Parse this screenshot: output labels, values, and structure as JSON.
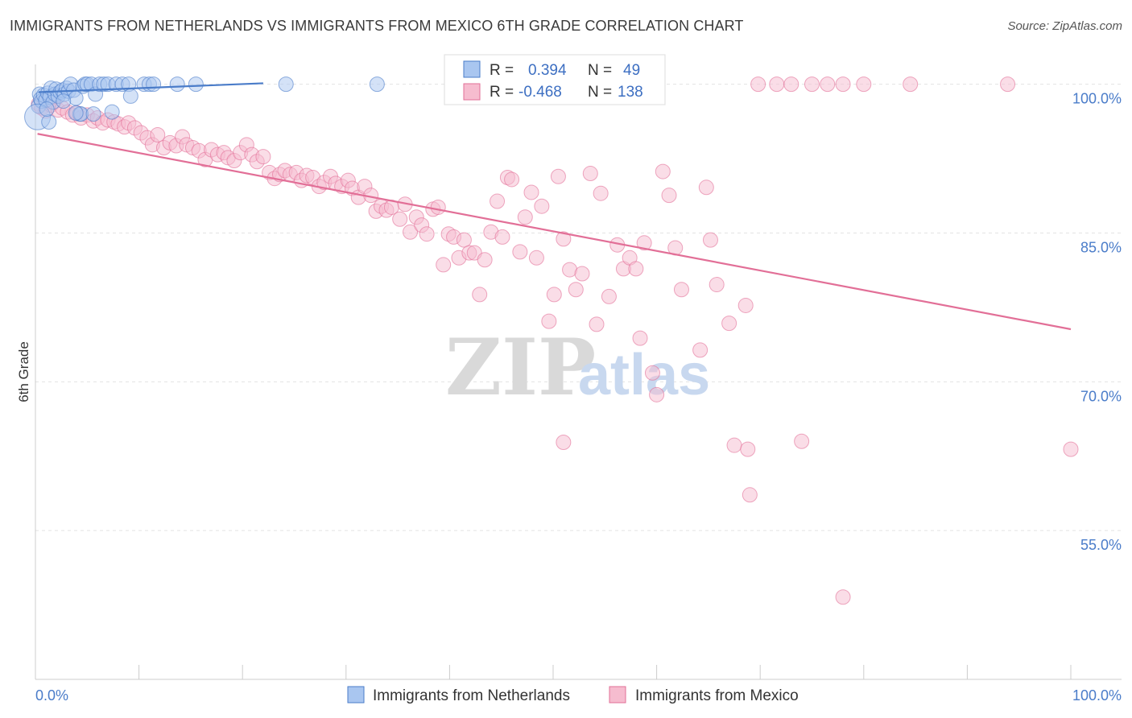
{
  "title": "IMMIGRANTS FROM NETHERLANDS VS IMMIGRANTS FROM MEXICO 6TH GRADE CORRELATION CHART",
  "source": "Source: ZipAtlas.com",
  "watermark": {
    "zip": "ZIP",
    "atlas": "atlas"
  },
  "colors": {
    "blue": "#4a7cc9",
    "blue_fill": "#a9c6f0",
    "pink": "#e26f97",
    "pink_fill": "#f6bccf"
  },
  "legend": {
    "rows": [
      {
        "r_label": "R =",
        "r_value": "0.394",
        "n_label": "N =",
        "n_value": "49"
      },
      {
        "r_label": "R =",
        "r_value": "-0.468",
        "n_label": "N =",
        "n_value": "138"
      }
    ]
  },
  "chart_data": {
    "type": "scatter",
    "xlabel": "",
    "ylabel": "6th Grade",
    "xlim": [
      0,
      100
    ],
    "ylim": [
      40,
      102
    ],
    "x_tick_labels": [
      "0.0%",
      "100.0%"
    ],
    "y_ticks": [
      {
        "value": 100,
        "label": "100.0%"
      },
      {
        "value": 85,
        "label": "85.0%"
      },
      {
        "value": 70,
        "label": "70.0%"
      },
      {
        "value": 55,
        "label": "55.0%"
      }
    ],
    "series": [
      {
        "name": "Immigrants from Netherlands",
        "color": "#4a7cc9",
        "trend": [
          [
            0.3,
            99.2
          ],
          [
            22,
            100.1
          ]
        ],
        "points": [
          [
            0.3,
            97.8
          ],
          [
            0.4,
            99.0
          ],
          [
            0.5,
            98.5
          ],
          [
            0.6,
            98.3
          ],
          [
            0.8,
            98.9
          ],
          [
            1.0,
            98.4
          ],
          [
            1.2,
            99.1
          ],
          [
            1.4,
            98.7
          ],
          [
            1.5,
            99.6
          ],
          [
            1.7,
            98.2
          ],
          [
            1.9,
            99.0
          ],
          [
            2.0,
            99.5
          ],
          [
            2.2,
            98.8
          ],
          [
            2.4,
            99.2
          ],
          [
            2.6,
            99.4
          ],
          [
            2.8,
            99.0
          ],
          [
            3.0,
            99.6
          ],
          [
            3.2,
            99.3
          ],
          [
            3.4,
            100.0
          ],
          [
            3.7,
            99.4
          ],
          [
            3.9,
            98.6
          ],
          [
            4.3,
            97.0
          ],
          [
            4.6,
            99.8
          ],
          [
            4.8,
            100.0
          ],
          [
            5.0,
            100.0
          ],
          [
            5.4,
            100.0
          ],
          [
            5.8,
            99.0
          ],
          [
            6.2,
            100.0
          ],
          [
            6.6,
            100.0
          ],
          [
            7.0,
            100.0
          ],
          [
            7.4,
            97.2
          ],
          [
            7.8,
            100.0
          ],
          [
            8.4,
            100.0
          ],
          [
            9.0,
            100.0
          ],
          [
            9.2,
            98.8
          ],
          [
            10.5,
            100.0
          ],
          [
            11.0,
            100.0
          ],
          [
            11.4,
            100.0
          ],
          [
            13.7,
            100.0
          ],
          [
            15.5,
            100.0
          ],
          [
            24.2,
            100.0
          ],
          [
            33.0,
            100.0
          ],
          [
            0.2,
            96.7
          ],
          [
            1.3,
            96.2
          ],
          [
            2.7,
            98.3
          ],
          [
            4.4,
            97.0
          ],
          [
            5.6,
            97.0
          ],
          [
            3.9,
            97.1
          ],
          [
            1.1,
            97.5
          ]
        ]
      },
      {
        "name": "Immigrants from Mexico",
        "color": "#e26f97",
        "trend": [
          [
            0.2,
            95.0
          ],
          [
            100,
            75.3
          ]
        ],
        "points": [
          [
            0.3,
            98.0
          ],
          [
            0.6,
            97.6
          ],
          [
            1.0,
            97.3
          ],
          [
            1.5,
            97.9
          ],
          [
            1.8,
            98.2
          ],
          [
            2.2,
            97.4
          ],
          [
            2.6,
            97.6
          ],
          [
            3.1,
            97.2
          ],
          [
            3.6,
            96.9
          ],
          [
            4.0,
            97.1
          ],
          [
            4.4,
            96.6
          ],
          [
            5.0,
            96.9
          ],
          [
            5.6,
            96.3
          ],
          [
            6.0,
            96.6
          ],
          [
            6.5,
            96.1
          ],
          [
            7.0,
            96.4
          ],
          [
            7.6,
            96.2
          ],
          [
            8.0,
            96.0
          ],
          [
            8.6,
            95.7
          ],
          [
            9.0,
            96.1
          ],
          [
            9.6,
            95.6
          ],
          [
            10.2,
            95.1
          ],
          [
            10.8,
            94.6
          ],
          [
            11.3,
            93.9
          ],
          [
            11.8,
            94.9
          ],
          [
            12.4,
            93.6
          ],
          [
            13.0,
            94.1
          ],
          [
            13.6,
            93.8
          ],
          [
            14.2,
            94.7
          ],
          [
            14.6,
            93.9
          ],
          [
            15.2,
            93.6
          ],
          [
            15.8,
            93.3
          ],
          [
            16.4,
            92.4
          ],
          [
            17.0,
            93.4
          ],
          [
            17.6,
            92.9
          ],
          [
            18.2,
            93.1
          ],
          [
            18.6,
            92.6
          ],
          [
            19.2,
            92.3
          ],
          [
            19.8,
            93.1
          ],
          [
            20.4,
            93.9
          ],
          [
            20.9,
            92.9
          ],
          [
            21.4,
            92.2
          ],
          [
            22.0,
            92.7
          ],
          [
            22.6,
            91.1
          ],
          [
            23.1,
            90.5
          ],
          [
            23.6,
            90.9
          ],
          [
            24.1,
            91.3
          ],
          [
            24.6,
            90.9
          ],
          [
            25.2,
            91.1
          ],
          [
            25.7,
            90.3
          ],
          [
            26.2,
            90.8
          ],
          [
            26.8,
            90.6
          ],
          [
            27.4,
            89.7
          ],
          [
            27.9,
            90.1
          ],
          [
            28.5,
            90.7
          ],
          [
            29.0,
            90.0
          ],
          [
            29.6,
            89.7
          ],
          [
            30.2,
            90.3
          ],
          [
            30.6,
            89.5
          ],
          [
            31.2,
            88.6
          ],
          [
            31.8,
            89.7
          ],
          [
            32.4,
            88.8
          ],
          [
            32.9,
            87.2
          ],
          [
            33.4,
            87.7
          ],
          [
            33.9,
            87.3
          ],
          [
            34.4,
            87.6
          ],
          [
            35.2,
            86.4
          ],
          [
            35.7,
            87.9
          ],
          [
            36.2,
            85.1
          ],
          [
            36.8,
            86.6
          ],
          [
            37.3,
            85.8
          ],
          [
            37.8,
            84.9
          ],
          [
            38.4,
            87.4
          ],
          [
            38.9,
            87.6
          ],
          [
            39.4,
            81.8
          ],
          [
            39.9,
            84.9
          ],
          [
            40.4,
            84.6
          ],
          [
            40.9,
            82.5
          ],
          [
            41.4,
            84.3
          ],
          [
            41.9,
            83.0
          ],
          [
            42.4,
            83.0
          ],
          [
            42.9,
            78.8
          ],
          [
            43.4,
            82.3
          ],
          [
            44.0,
            85.1
          ],
          [
            44.6,
            88.2
          ],
          [
            45.1,
            84.6
          ],
          [
            45.6,
            90.6
          ],
          [
            46.0,
            90.4
          ],
          [
            46.8,
            83.1
          ],
          [
            47.3,
            86.6
          ],
          [
            47.9,
            89.1
          ],
          [
            48.4,
            82.5
          ],
          [
            48.9,
            87.7
          ],
          [
            49.6,
            76.1
          ],
          [
            50.1,
            78.8
          ],
          [
            50.5,
            90.7
          ],
          [
            51.0,
            84.4
          ],
          [
            51.6,
            81.3
          ],
          [
            52.2,
            79.3
          ],
          [
            52.8,
            80.9
          ],
          [
            53.6,
            91.0
          ],
          [
            54.2,
            75.8
          ],
          [
            54.6,
            89.0
          ],
          [
            55.4,
            78.6
          ],
          [
            56.2,
            83.8
          ],
          [
            56.8,
            81.4
          ],
          [
            57.4,
            82.5
          ],
          [
            58.0,
            81.4
          ],
          [
            58.4,
            74.4
          ],
          [
            58.8,
            84.0
          ],
          [
            59.6,
            70.9
          ],
          [
            60.0,
            68.7
          ],
          [
            60.6,
            91.2
          ],
          [
            61.2,
            88.8
          ],
          [
            61.8,
            83.5
          ],
          [
            62.4,
            79.3
          ],
          [
            64.2,
            73.2
          ],
          [
            64.8,
            89.6
          ],
          [
            65.2,
            84.3
          ],
          [
            65.8,
            79.8
          ],
          [
            67.0,
            75.9
          ],
          [
            67.5,
            63.6
          ],
          [
            68.6,
            77.7
          ],
          [
            68.8,
            63.2
          ],
          [
            69.0,
            58.6
          ],
          [
            74.0,
            64.0
          ],
          [
            51.0,
            63.9
          ],
          [
            78.0,
            48.3
          ],
          [
            100.0,
            63.2
          ],
          [
            76.5,
            100.0
          ],
          [
            71.6,
            100.0
          ],
          [
            69.8,
            100.0
          ],
          [
            73.0,
            100.0
          ],
          [
            75.0,
            100.0
          ],
          [
            78.0,
            100.0
          ],
          [
            80.0,
            100.0
          ],
          [
            84.5,
            100.0
          ],
          [
            93.9,
            100.0
          ]
        ]
      }
    ]
  },
  "bottom_legend": [
    {
      "label": "Immigrants from Netherlands"
    },
    {
      "label": "Immigrants from Mexico"
    }
  ]
}
